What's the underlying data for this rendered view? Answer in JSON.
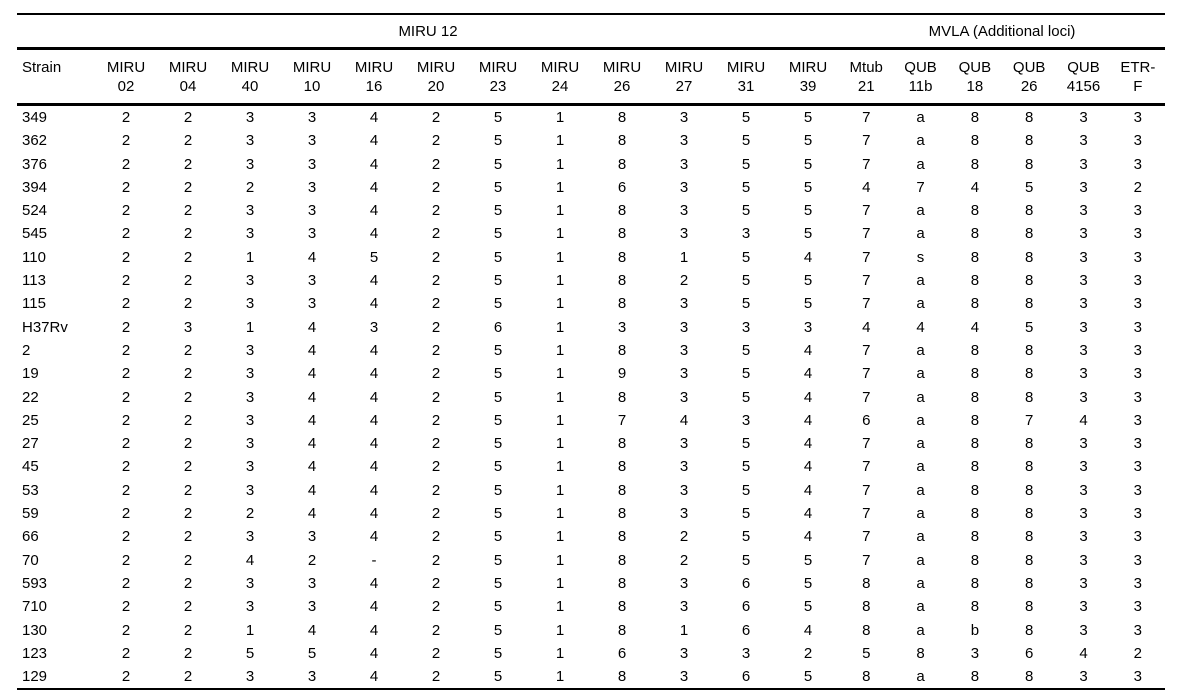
{
  "page": {
    "background_color": "#ffffff",
    "text_color": "#000000",
    "rule_color": "#000000"
  },
  "table": {
    "group_headers": [
      {
        "label": "MIRU 12",
        "span": 13
      },
      {
        "label": "MVLA (Additional loci)",
        "span": 6
      }
    ],
    "strain_header": "Strain",
    "columns": [
      {
        "line1": "MIRU",
        "line2": "02"
      },
      {
        "line1": "MIRU",
        "line2": "04"
      },
      {
        "line1": "MIRU",
        "line2": "40"
      },
      {
        "line1": "MIRU",
        "line2": "10"
      },
      {
        "line1": "MIRU",
        "line2": "16"
      },
      {
        "line1": "MIRU",
        "line2": "20"
      },
      {
        "line1": "MIRU",
        "line2": "23"
      },
      {
        "line1": "MIRU",
        "line2": "24"
      },
      {
        "line1": "MIRU",
        "line2": "26"
      },
      {
        "line1": "MIRU",
        "line2": "27"
      },
      {
        "line1": "MIRU",
        "line2": "31"
      },
      {
        "line1": "MIRU",
        "line2": "39"
      },
      {
        "line1": "Mtub",
        "line2": "21"
      },
      {
        "line1": "QUB",
        "line2": "11b"
      },
      {
        "line1": "QUB",
        "line2": "18"
      },
      {
        "line1": "QUB",
        "line2": "26"
      },
      {
        "line1": "QUB",
        "line2": "4156"
      },
      {
        "line1": "ETR-",
        "line2": "F"
      }
    ],
    "rows": [
      {
        "strain": "349",
        "values": [
          "2",
          "2",
          "3",
          "3",
          "4",
          "2",
          "5",
          "1",
          "8",
          "3",
          "5",
          "5",
          "7",
          "a",
          "8",
          "8",
          "3",
          "3"
        ]
      },
      {
        "strain": "362",
        "values": [
          "2",
          "2",
          "3",
          "3",
          "4",
          "2",
          "5",
          "1",
          "8",
          "3",
          "5",
          "5",
          "7",
          "a",
          "8",
          "8",
          "3",
          "3"
        ]
      },
      {
        "strain": "376",
        "values": [
          "2",
          "2",
          "3",
          "3",
          "4",
          "2",
          "5",
          "1",
          "8",
          "3",
          "5",
          "5",
          "7",
          "a",
          "8",
          "8",
          "3",
          "3"
        ]
      },
      {
        "strain": "394",
        "values": [
          "2",
          "2",
          "2",
          "3",
          "4",
          "2",
          "5",
          "1",
          "6",
          "3",
          "5",
          "5",
          "4",
          "7",
          "4",
          "5",
          "3",
          "2"
        ]
      },
      {
        "strain": "524",
        "values": [
          "2",
          "2",
          "3",
          "3",
          "4",
          "2",
          "5",
          "1",
          "8",
          "3",
          "5",
          "5",
          "7",
          "a",
          "8",
          "8",
          "3",
          "3"
        ]
      },
      {
        "strain": "545",
        "values": [
          "2",
          "2",
          "3",
          "3",
          "4",
          "2",
          "5",
          "1",
          "8",
          "3",
          "3",
          "5",
          "7",
          "a",
          "8",
          "8",
          "3",
          "3"
        ]
      },
      {
        "strain": "110",
        "values": [
          "2",
          "2",
          "1",
          "4",
          "5",
          "2",
          "5",
          "1",
          "8",
          "1",
          "5",
          "4",
          "7",
          "s",
          "8",
          "8",
          "3",
          "3"
        ]
      },
      {
        "strain": "113",
        "values": [
          "2",
          "2",
          "3",
          "3",
          "4",
          "2",
          "5",
          "1",
          "8",
          "2",
          "5",
          "5",
          "7",
          "a",
          "8",
          "8",
          "3",
          "3"
        ]
      },
      {
        "strain": "115",
        "values": [
          "2",
          "2",
          "3",
          "3",
          "4",
          "2",
          "5",
          "1",
          "8",
          "3",
          "5",
          "5",
          "7",
          "a",
          "8",
          "8",
          "3",
          "3"
        ]
      },
      {
        "strain": "H37Rv",
        "values": [
          "2",
          "3",
          "1",
          "4",
          "3",
          "2",
          "6",
          "1",
          "3",
          "3",
          "3",
          "3",
          "4",
          "4",
          "4",
          "5",
          "3",
          "3"
        ]
      },
      {
        "strain": "2",
        "values": [
          "2",
          "2",
          "3",
          "4",
          "4",
          "2",
          "5",
          "1",
          "8",
          "3",
          "5",
          "4",
          "7",
          "a",
          "8",
          "8",
          "3",
          "3"
        ]
      },
      {
        "strain": "19",
        "values": [
          "2",
          "2",
          "3",
          "4",
          "4",
          "2",
          "5",
          "1",
          "9",
          "3",
          "5",
          "4",
          "7",
          "a",
          "8",
          "8",
          "3",
          "3"
        ]
      },
      {
        "strain": "22",
        "values": [
          "2",
          "2",
          "3",
          "4",
          "4",
          "2",
          "5",
          "1",
          "8",
          "3",
          "5",
          "4",
          "7",
          "a",
          "8",
          "8",
          "3",
          "3"
        ]
      },
      {
        "strain": "25",
        "values": [
          "2",
          "2",
          "3",
          "4",
          "4",
          "2",
          "5",
          "1",
          "7",
          "4",
          "3",
          "4",
          "6",
          "a",
          "8",
          "7",
          "4",
          "3"
        ]
      },
      {
        "strain": "27",
        "values": [
          "2",
          "2",
          "3",
          "4",
          "4",
          "2",
          "5",
          "1",
          "8",
          "3",
          "5",
          "4",
          "7",
          "a",
          "8",
          "8",
          "3",
          "3"
        ]
      },
      {
        "strain": "45",
        "values": [
          "2",
          "2",
          "3",
          "4",
          "4",
          "2",
          "5",
          "1",
          "8",
          "3",
          "5",
          "4",
          "7",
          "a",
          "8",
          "8",
          "3",
          "3"
        ]
      },
      {
        "strain": "53",
        "values": [
          "2",
          "2",
          "3",
          "4",
          "4",
          "2",
          "5",
          "1",
          "8",
          "3",
          "5",
          "4",
          "7",
          "a",
          "8",
          "8",
          "3",
          "3"
        ]
      },
      {
        "strain": "59",
        "values": [
          "2",
          "2",
          "2",
          "4",
          "4",
          "2",
          "5",
          "1",
          "8",
          "3",
          "5",
          "4",
          "7",
          "a",
          "8",
          "8",
          "3",
          "3"
        ]
      },
      {
        "strain": "66",
        "values": [
          "2",
          "2",
          "3",
          "3",
          "4",
          "2",
          "5",
          "1",
          "8",
          "2",
          "5",
          "4",
          "7",
          "a",
          "8",
          "8",
          "3",
          "3"
        ]
      },
      {
        "strain": "70",
        "values": [
          "2",
          "2",
          "4",
          "2",
          "-",
          "2",
          "5",
          "1",
          "8",
          "2",
          "5",
          "5",
          "7",
          "a",
          "8",
          "8",
          "3",
          "3"
        ]
      },
      {
        "strain": "593",
        "values": [
          "2",
          "2",
          "3",
          "3",
          "4",
          "2",
          "5",
          "1",
          "8",
          "3",
          "6",
          "5",
          "8",
          "a",
          "8",
          "8",
          "3",
          "3"
        ]
      },
      {
        "strain": "710",
        "values": [
          "2",
          "2",
          "3",
          "3",
          "4",
          "2",
          "5",
          "1",
          "8",
          "3",
          "6",
          "5",
          "8",
          "a",
          "8",
          "8",
          "3",
          "3"
        ]
      },
      {
        "strain": "130",
        "values": [
          "2",
          "2",
          "1",
          "4",
          "4",
          "2",
          "5",
          "1",
          "8",
          "1",
          "6",
          "4",
          "8",
          "a",
          "b",
          "8",
          "3",
          "3"
        ]
      },
      {
        "strain": "123",
        "values": [
          "2",
          "2",
          "5",
          "5",
          "4",
          "2",
          "5",
          "1",
          "6",
          "3",
          "3",
          "2",
          "5",
          "8",
          "3",
          "6",
          "4",
          "2"
        ]
      },
      {
        "strain": "129",
        "values": [
          "2",
          "2",
          "3",
          "3",
          "4",
          "2",
          "5",
          "1",
          "8",
          "3",
          "6",
          "5",
          "8",
          "a",
          "8",
          "8",
          "3",
          "3"
        ]
      }
    ]
  }
}
